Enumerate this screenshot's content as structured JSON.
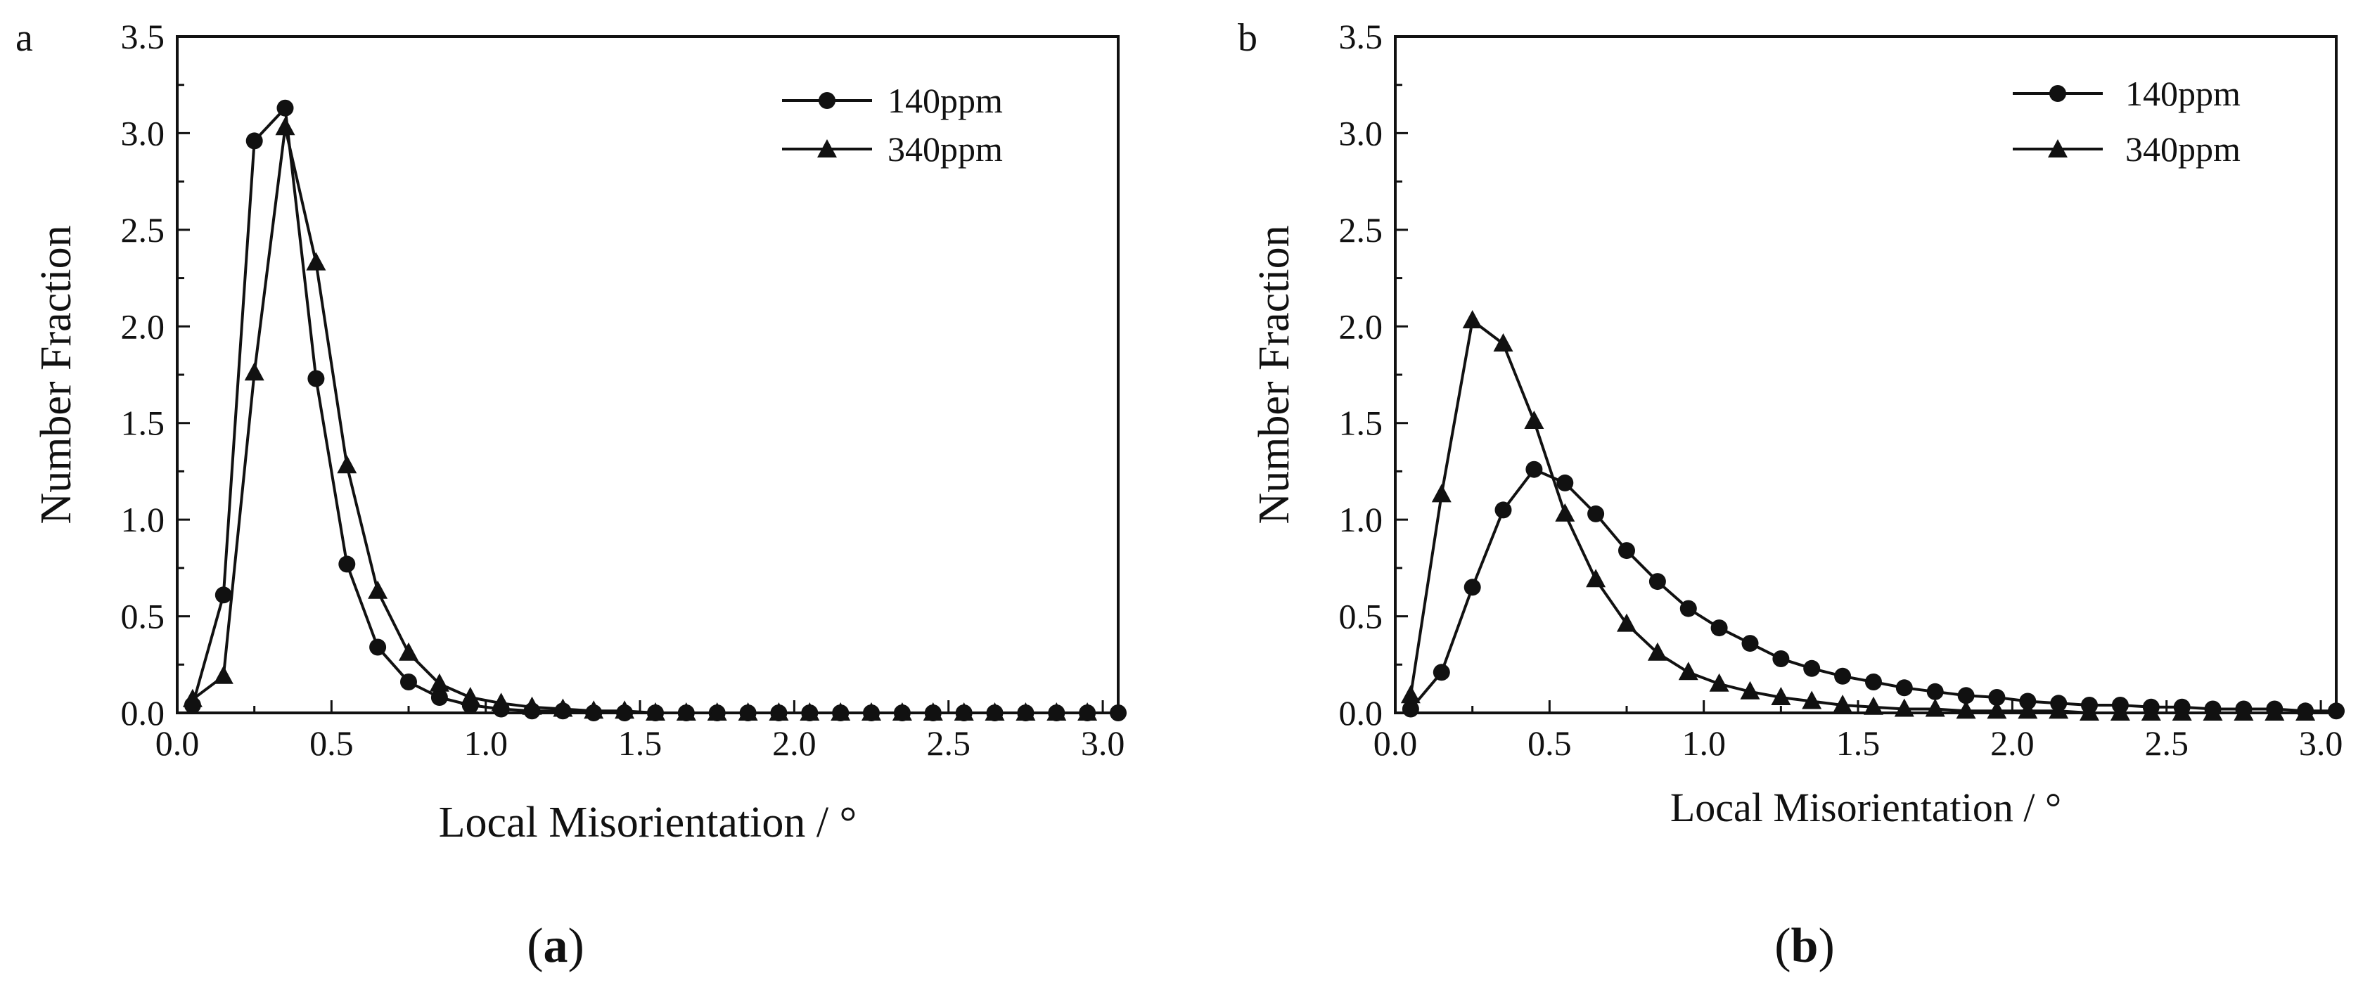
{
  "figure": {
    "captions": [
      {
        "open": "(",
        "letter": "a",
        "close": ")"
      },
      {
        "open": "(",
        "letter": "b",
        "close": ")"
      }
    ]
  },
  "colors": {
    "ink": "#111111",
    "background": "#ffffff"
  },
  "chart_data": [
    {
      "type": "line",
      "panel_label": "a",
      "title": "",
      "xlabel": "Local Misorientation / °",
      "ylabel": "Number Fraction",
      "xlim": [
        0.0,
        3.05
      ],
      "ylim": [
        0.0,
        3.5
      ],
      "xticks": [
        0.0,
        0.5,
        1.0,
        1.5,
        2.0,
        2.5,
        3.0
      ],
      "xtick_labels": [
        "0.0",
        "0.5",
        "1.0",
        "1.5",
        "2.0",
        "2.5",
        "3.0"
      ],
      "yticks": [
        0.0,
        0.5,
        1.0,
        1.5,
        2.0,
        2.5,
        3.0,
        3.5
      ],
      "ytick_labels": [
        "0.0",
        "0.5",
        "1.0",
        "1.5",
        "2.0",
        "2.5",
        "3.0",
        "3.5"
      ],
      "grid": false,
      "legend_position": "top-right",
      "series": [
        {
          "name": "140ppm",
          "marker": "circle",
          "x": [
            0.05,
            0.15,
            0.25,
            0.35,
            0.45,
            0.55,
            0.65,
            0.75,
            0.85,
            0.95,
            1.05,
            1.15,
            1.25,
            1.35,
            1.45,
            1.55,
            1.65,
            1.75,
            1.85,
            1.95,
            2.05,
            2.15,
            2.25,
            2.35,
            2.45,
            2.55,
            2.65,
            2.75,
            2.85,
            2.95,
            3.05
          ],
          "values": [
            0.04,
            0.61,
            2.96,
            3.13,
            1.73,
            0.77,
            0.34,
            0.16,
            0.08,
            0.04,
            0.02,
            0.01,
            0.01,
            0.0,
            0.0,
            0.0,
            0.0,
            0.0,
            0.0,
            0.0,
            0.0,
            0.0,
            0.0,
            0.0,
            0.0,
            0.0,
            0.0,
            0.0,
            0.0,
            0.0,
            0.0
          ]
        },
        {
          "name": "340ppm",
          "marker": "triangle",
          "x": [
            0.05,
            0.15,
            0.25,
            0.35,
            0.45,
            0.55,
            0.65,
            0.75,
            0.85,
            0.95,
            1.05,
            1.15,
            1.25,
            1.35,
            1.45,
            1.55,
            1.65,
            1.75,
            1.85,
            1.95,
            2.05,
            2.15,
            2.25,
            2.35,
            2.45,
            2.55,
            2.65,
            2.75,
            2.85,
            2.95
          ],
          "values": [
            0.07,
            0.19,
            1.76,
            3.03,
            2.33,
            1.28,
            0.63,
            0.31,
            0.15,
            0.08,
            0.05,
            0.03,
            0.02,
            0.01,
            0.01,
            0.0,
            0.0,
            0.0,
            0.0,
            0.0,
            0.0,
            0.0,
            0.0,
            0.0,
            0.0,
            0.0,
            0.0,
            0.0,
            0.0,
            0.0
          ]
        }
      ]
    },
    {
      "type": "line",
      "panel_label": "b",
      "title": "",
      "xlabel": "Local Misorientation / °",
      "ylabel": "Number Fraction",
      "xlim": [
        0.0,
        3.05
      ],
      "ylim": [
        0.0,
        3.5
      ],
      "xticks": [
        0.0,
        0.5,
        1.0,
        1.5,
        2.0,
        2.5,
        3.0
      ],
      "xtick_labels": [
        "0.0",
        "0.5",
        "1.0",
        "1.5",
        "2.0",
        "2.5",
        "3.0"
      ],
      "yticks": [
        0.0,
        0.5,
        1.0,
        1.5,
        2.0,
        2.5,
        3.0,
        3.5
      ],
      "ytick_labels": [
        "0.0",
        "0.5",
        "1.0",
        "1.5",
        "2.0",
        "2.5",
        "3.0",
        "3.5"
      ],
      "grid": false,
      "legend_position": "top-right",
      "series": [
        {
          "name": "140ppm",
          "marker": "circle",
          "x": [
            0.05,
            0.15,
            0.25,
            0.35,
            0.45,
            0.55,
            0.65,
            0.75,
            0.85,
            0.95,
            1.05,
            1.15,
            1.25,
            1.35,
            1.45,
            1.55,
            1.65,
            1.75,
            1.85,
            1.95,
            2.05,
            2.15,
            2.25,
            2.35,
            2.45,
            2.55,
            2.65,
            2.75,
            2.85,
            2.95,
            3.05
          ],
          "values": [
            0.02,
            0.21,
            0.65,
            1.05,
            1.26,
            1.19,
            1.03,
            0.84,
            0.68,
            0.54,
            0.44,
            0.36,
            0.28,
            0.23,
            0.19,
            0.16,
            0.13,
            0.11,
            0.09,
            0.08,
            0.06,
            0.05,
            0.04,
            0.04,
            0.03,
            0.03,
            0.02,
            0.02,
            0.02,
            0.01,
            0.01
          ]
        },
        {
          "name": "340ppm",
          "marker": "triangle",
          "x": [
            0.05,
            0.15,
            0.25,
            0.35,
            0.45,
            0.55,
            0.65,
            0.75,
            0.85,
            0.95,
            1.05,
            1.15,
            1.25,
            1.35,
            1.45,
            1.55,
            1.65,
            1.75,
            1.85,
            1.95,
            2.05,
            2.15,
            2.25,
            2.35,
            2.45,
            2.55,
            2.65,
            2.75,
            2.85,
            2.95
          ],
          "values": [
            0.09,
            1.13,
            2.03,
            1.91,
            1.51,
            1.03,
            0.69,
            0.46,
            0.31,
            0.21,
            0.15,
            0.11,
            0.08,
            0.06,
            0.04,
            0.03,
            0.02,
            0.02,
            0.01,
            0.01,
            0.01,
            0.01,
            0.0,
            0.0,
            0.0,
            0.0,
            0.0,
            0.0,
            0.0,
            0.0
          ]
        }
      ]
    }
  ]
}
